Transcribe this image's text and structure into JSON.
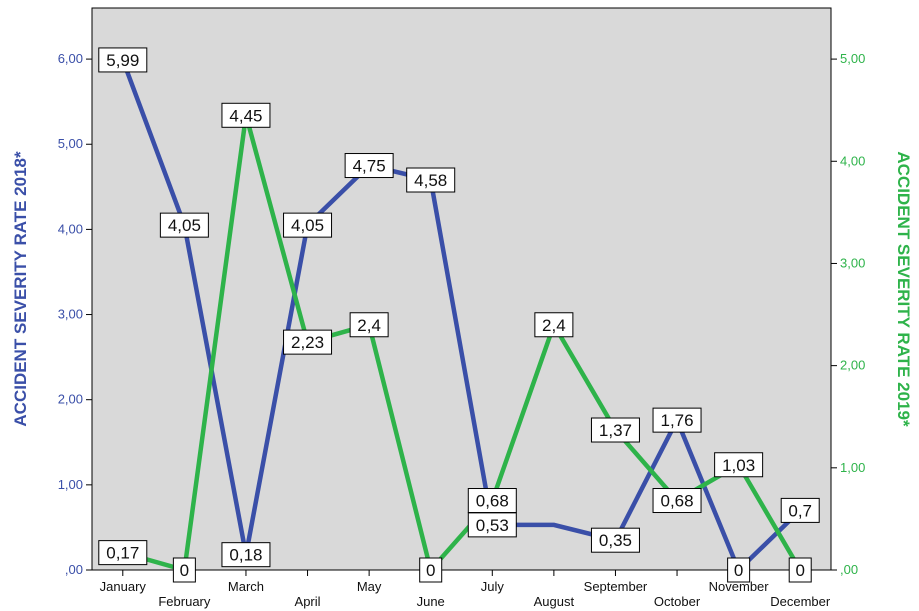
{
  "chart_data": {
    "type": "line",
    "categories": [
      "January",
      "February",
      "March",
      "April",
      "May",
      "June",
      "July",
      "August",
      "September",
      "October",
      "November",
      "December"
    ],
    "series": [
      {
        "axis": "left",
        "color": "#3a4fa8",
        "values": [
          5.99,
          4.05,
          0.18,
          4.05,
          4.75,
          4.58,
          0.53,
          0.53,
          0.35,
          1.76,
          0,
          0.7
        ],
        "labels": [
          "5,99",
          "4,05",
          "0,18",
          "4,05",
          "4,75",
          "4,58",
          "0,53",
          "",
          "0,35",
          "1,76",
          "0",
          "0,7"
        ]
      },
      {
        "axis": "right",
        "color": "#2eb34a",
        "values": [
          0.17,
          0,
          4.45,
          2.23,
          2.4,
          0,
          0.68,
          2.4,
          1.37,
          0.68,
          1.03,
          0
        ],
        "labels": [
          "0,17",
          "0",
          "4,45",
          "2,23",
          "2,4",
          "0",
          "0,68",
          "2,4",
          "1,37",
          "0,68",
          "1,03",
          "0"
        ]
      }
    ],
    "ylabel_left": "ACCIDENT SEVERITY RATE 2018*",
    "ylabel_right": "ACCIDENT SEVERITY RATE 2019*",
    "ylim_left": [
      0,
      6.6
    ],
    "ylim_right": [
      0,
      5.5
    ],
    "yticks_left": [
      0,
      1,
      2,
      3,
      4,
      5,
      6
    ],
    "yticks_left_labels": [
      ",00",
      "1,00",
      "2,00",
      "3,00",
      "4,00",
      "5,00",
      "6,00"
    ],
    "yticks_right": [
      0,
      1,
      2,
      3,
      4,
      5
    ],
    "yticks_right_labels": [
      ",00",
      "1,00",
      "2,00",
      "3,00",
      "4,00",
      "5,00"
    ],
    "plot_background": "#d9d9d9",
    "grid": false,
    "legend": "none"
  }
}
